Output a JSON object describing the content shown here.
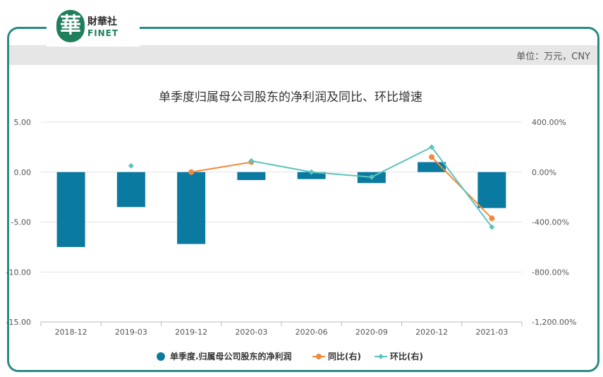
{
  "logo": {
    "mark": "華",
    "cn": "財華社",
    "en": "FINET"
  },
  "unit": "单位：万元，CNY",
  "chart_data": {
    "type": "bar",
    "title": "单季度归属母公司股东的净利润及同比、环比增速",
    "categories": [
      "2018-12",
      "2019-03",
      "2019-12",
      "2020-03",
      "2020-06",
      "2020-09",
      "2020-12",
      "2021-03"
    ],
    "left_axis": {
      "ylim": [
        -15,
        5
      ],
      "ticks": [
        5,
        0,
        -5,
        -10,
        -15
      ],
      "tick_labels": [
        "5.00",
        "0.00",
        "-5.00",
        "-10.00",
        "-15.00"
      ]
    },
    "right_axis": {
      "ylim": [
        -1200,
        400
      ],
      "ticks": [
        400,
        0,
        -400,
        -800,
        -1200
      ],
      "tick_labels": [
        "400.00%",
        "0.00%",
        "-400.00%",
        "-800.00%",
        "-1,200.00%"
      ]
    },
    "series": [
      {
        "name": "单季度.归属母公司股东的净利润",
        "kind": "bar",
        "axis": "left",
        "color": "#0b7aa0",
        "values": [
          -7.5,
          -3.5,
          -7.2,
          -0.8,
          -0.7,
          -1.1,
          1.0,
          -3.6
        ]
      },
      {
        "name": "同比(右)",
        "kind": "line",
        "axis": "right",
        "color": "#f08a3c",
        "values": [
          null,
          null,
          0,
          80,
          null,
          null,
          120,
          -370
        ]
      },
      {
        "name": "环比(右)",
        "kind": "line",
        "axis": "right",
        "color": "#5cc4bf",
        "values": [
          null,
          50,
          null,
          90,
          0,
          -40,
          200,
          -440
        ]
      }
    ],
    "grid": true,
    "legend": "bottom"
  }
}
